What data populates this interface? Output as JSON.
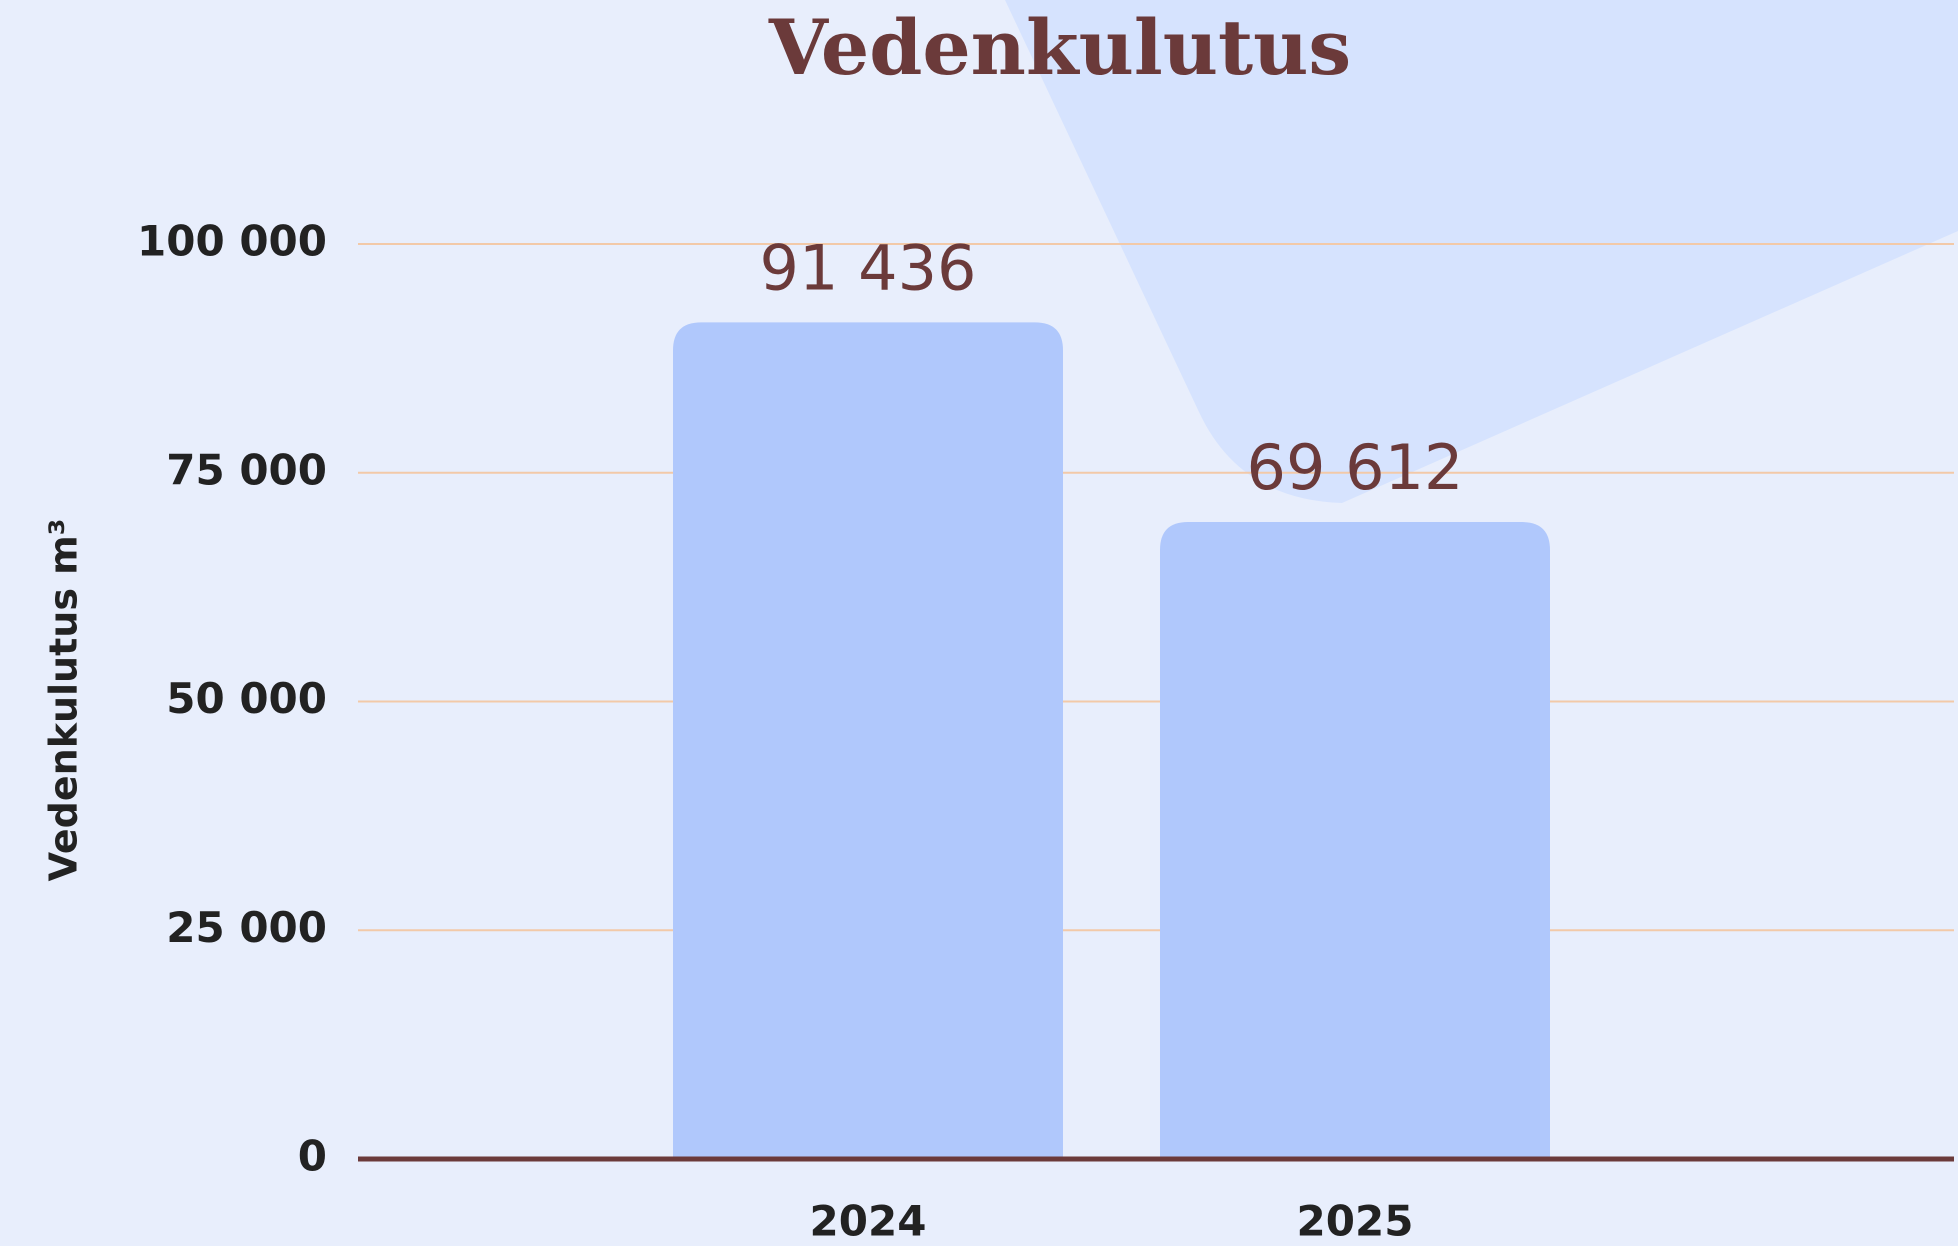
{
  "chart_data": {
    "type": "bar",
    "title": "Vedenkulutus",
    "y_label": "Vedenkulutus m³",
    "categories": [
      "2024",
      "2025"
    ],
    "values": [
      91436,
      69612
    ],
    "value_labels": [
      "91 436",
      "69 612"
    ],
    "color": "#b0c8fc",
    "ylim": [
      0,
      100000
    ],
    "yticks": [
      0,
      {
        "value": 25000,
        "label": "25 000"
      },
      {
        "value": 50000,
        "label": "50 000"
      },
      {
        "value": 75000,
        "label": "75 000"
      },
      {
        "value": 100000,
        "label": "100 000"
      }
    ],
    "grid": true
  }
}
